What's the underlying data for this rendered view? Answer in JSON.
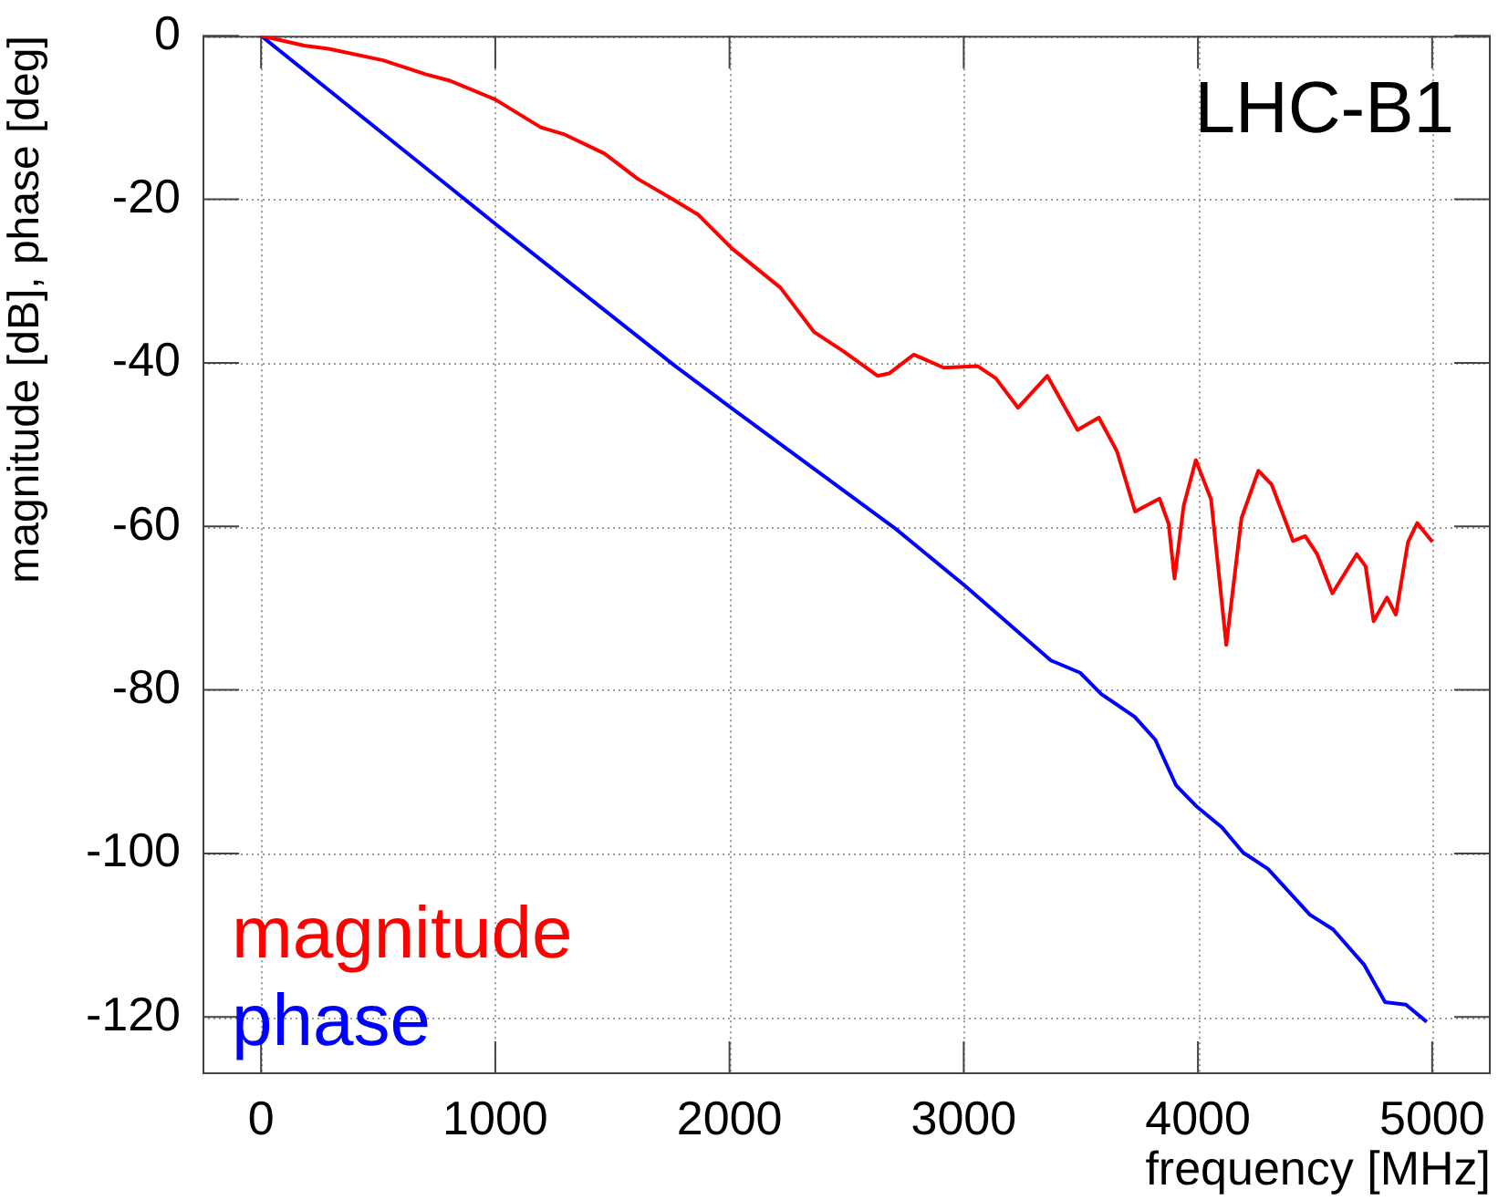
{
  "chart_data": {
    "type": "line",
    "xlabel": "frequency [MHz]",
    "ylabel": "magnitude [dB], phase [deg]",
    "annotations": [
      "LHC-B1"
    ],
    "xlim": [
      -250,
      5250
    ],
    "xticks": [
      0,
      1000,
      2000,
      3000,
      4000,
      5000
    ],
    "ylim": [
      -127,
      0
    ],
    "yticks": [
      -120,
      -100,
      -80,
      -60,
      -40,
      -20,
      0
    ],
    "grid": true,
    "legend": "bottom left",
    "marker": "none",
    "line_style": "solid",
    "series": [
      {
        "name": "magnitude",
        "color": "#ff0000",
        "x": [
          0,
          184,
          288,
          521,
          702,
          806,
          1000,
          1194,
          1298,
          1466,
          1608,
          1764,
          1867,
          2010,
          2217,
          2360,
          2487,
          2632,
          2681,
          2787,
          2915,
          3059,
          3137,
          3232,
          3357,
          3486,
          3577,
          3654,
          3732,
          3836,
          3875,
          3900,
          3939,
          3991,
          4056,
          4121,
          4186,
          4258,
          4315,
          4406,
          4458,
          4509,
          4574,
          4678,
          4716,
          4750,
          4807,
          4845,
          4897,
          4936,
          5001
        ],
        "values": [
          0,
          -1.2,
          -1.6,
          -3,
          -4.7,
          -5.5,
          -7.8,
          -11.2,
          -12.1,
          -14.4,
          -17.5,
          -20.1,
          -21.9,
          -26,
          -30.8,
          -36.2,
          -38.6,
          -41.6,
          -41.3,
          -39,
          -40.6,
          -40.4,
          -41.9,
          -45.5,
          -41.6,
          -48.2,
          -46.7,
          -50.8,
          -58.2,
          -56.6,
          -59.7,
          -66.4,
          -57.5,
          -51.9,
          -56.7,
          -74.5,
          -59,
          -53.2,
          -54.9,
          -61.8,
          -61.2,
          -63.4,
          -68.2,
          -63.4,
          -64.9,
          -71.6,
          -68.7,
          -70.8,
          -61.9,
          -59.6,
          -61.9
        ]
      },
      {
        "name": "phase",
        "color": "#0000ff",
        "x": [
          0,
          1000,
          1764,
          1997,
          2709,
          3007,
          3372,
          3497,
          3587,
          3730,
          3818,
          3907,
          3996,
          4102,
          4193,
          4299,
          4478,
          4577,
          4709,
          4799,
          4888,
          4977
        ],
        "values": [
          0,
          -23,
          -40.3,
          -45.3,
          -60.3,
          -67.3,
          -76.4,
          -77.9,
          -80.5,
          -83.3,
          -86.1,
          -91.7,
          -94.3,
          -96.8,
          -99.9,
          -101.9,
          -107.5,
          -109.3,
          -113.6,
          -118.2,
          -118.5,
          -120.6
        ]
      }
    ]
  }
}
